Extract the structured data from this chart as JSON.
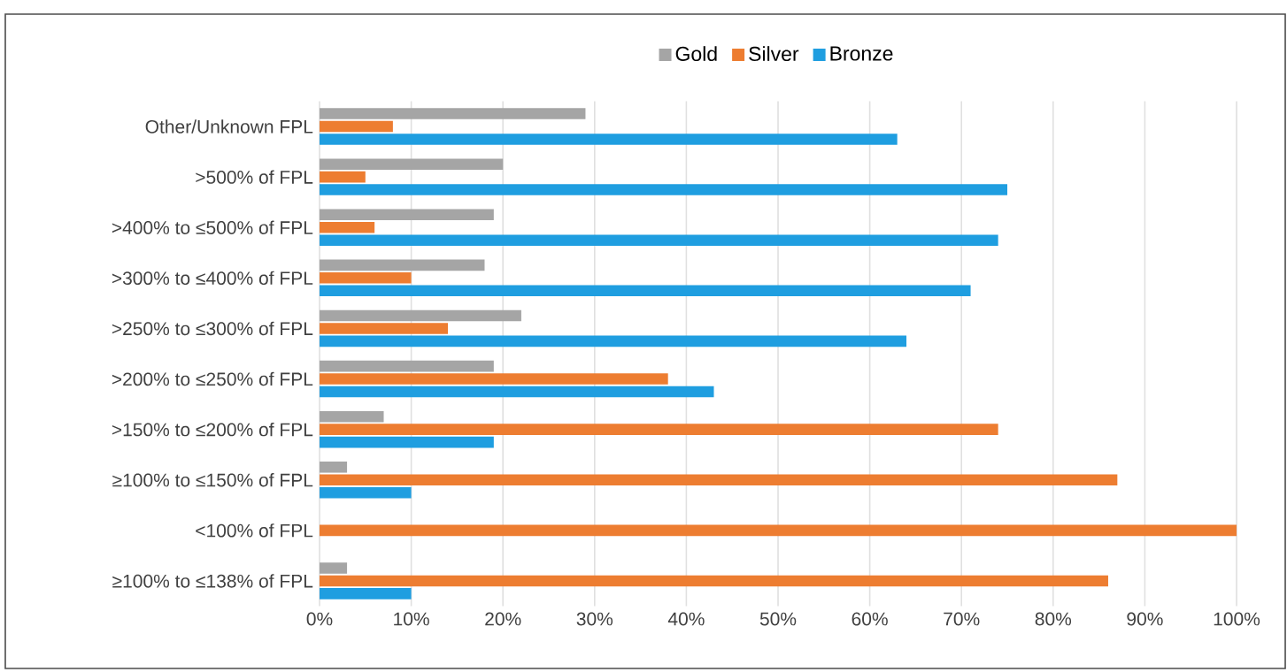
{
  "chart_data": {
    "type": "bar",
    "orientation": "horizontal",
    "categories": [
      "Other/Unknown FPL",
      ">500% of FPL",
      ">400% to ≤500% of FPL",
      ">300% to ≤400% of FPL",
      ">250% to ≤300% of FPL",
      ">200% to ≤250% of FPL",
      ">150% to ≤200% of FPL",
      "≥100% to ≤150% of FPL",
      "<100% of FPL",
      "≥100% to ≤138% of FPL"
    ],
    "series": [
      {
        "name": "Gold",
        "color": "#a5a5a5",
        "values": [
          29,
          20,
          19,
          18,
          22,
          19,
          7,
          3,
          0,
          3
        ]
      },
      {
        "name": "Silver",
        "color": "#ed7d31",
        "values": [
          8,
          5,
          6,
          10,
          14,
          38,
          74,
          87,
          100,
          86
        ]
      },
      {
        "name": "Bronze",
        "color": "#1f9ee0",
        "values": [
          63,
          75,
          74,
          71,
          64,
          43,
          19,
          10,
          0,
          10
        ]
      }
    ],
    "xlim": [
      0,
      100
    ],
    "xticks": [
      {
        "value": 0,
        "label": "0%"
      },
      {
        "value": 10,
        "label": "10%"
      },
      {
        "value": 20,
        "label": "20%"
      },
      {
        "value": 30,
        "label": "30%"
      },
      {
        "value": 40,
        "label": "40%"
      },
      {
        "value": 50,
        "label": "50%"
      },
      {
        "value": 60,
        "label": "60%"
      },
      {
        "value": 70,
        "label": "70%"
      },
      {
        "value": 80,
        "label": "80%"
      },
      {
        "value": 90,
        "label": "90%"
      },
      {
        "value": 100,
        "label": "100%"
      }
    ],
    "grid": "x",
    "legend": "top"
  }
}
